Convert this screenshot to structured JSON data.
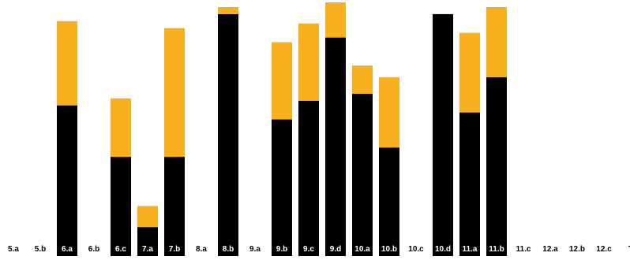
{
  "colors": {
    "base": "#000000",
    "top": "#f9b020",
    "label_on_bar": "#ffffff",
    "label_off_bar": "#000000",
    "background": "#ffffff"
  },
  "chart_data": {
    "type": "bar",
    "stacked": true,
    "title": "",
    "xlabel": "",
    "ylabel": "",
    "categories": [
      "5.a",
      "5.b",
      "6.a",
      "6.b",
      "6.c",
      "7.a",
      "7.b",
      "8.a",
      "8.b",
      "9.a",
      "9.b",
      "9.c",
      "9.d",
      "10.a",
      "10.b",
      "10.c",
      "10.d",
      "11.a",
      "11.b",
      "11.c",
      "12.a",
      "12.b",
      "12.c",
      "T"
    ],
    "ylim": [
      0,
      100
    ],
    "series": [
      {
        "color": "#000000",
        "values": [
          0,
          0,
          58,
          0,
          36,
          6,
          36,
          0,
          97,
          0,
          52,
          60,
          87,
          63,
          40,
          0,
          97,
          55,
          70,
          0,
          0,
          0,
          0,
          0
        ]
      },
      {
        "color": "#f9b020",
        "values": [
          0,
          0,
          36,
          0,
          25,
          9,
          55,
          0,
          3,
          0,
          33,
          33,
          15,
          12,
          30,
          0,
          0,
          34,
          30,
          0,
          0,
          0,
          0,
          0
        ]
      }
    ],
    "grid": false,
    "legend": "none"
  }
}
